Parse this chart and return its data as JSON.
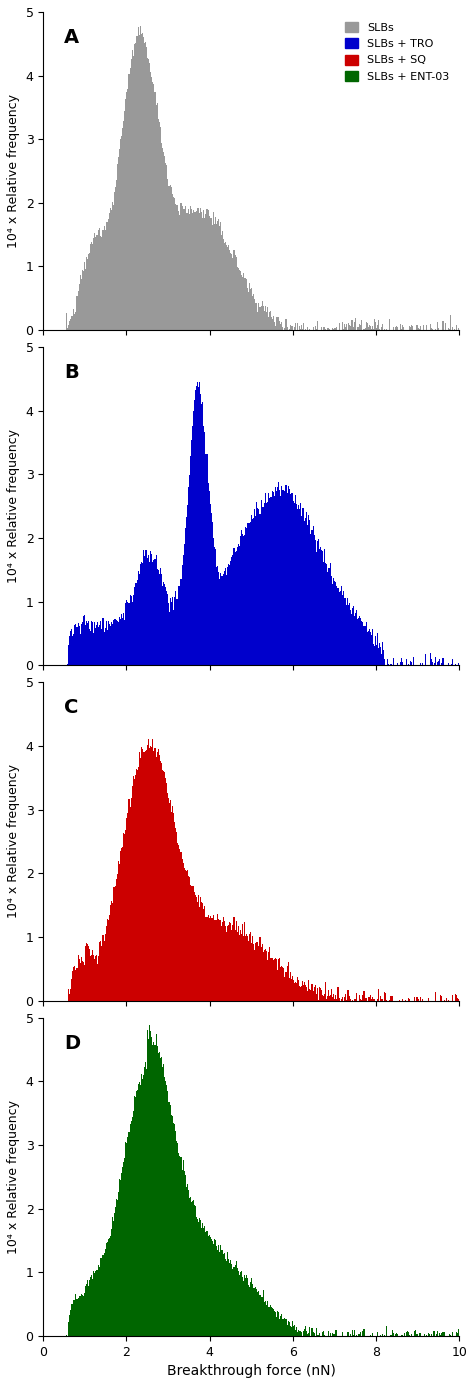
{
  "panels": [
    {
      "label": "A",
      "color": "#999999"
    },
    {
      "label": "B",
      "color": "#0000cc"
    },
    {
      "label": "C",
      "color": "#cc0000"
    },
    {
      "label": "D",
      "color": "#006600"
    }
  ],
  "legend_labels": [
    "SLBs",
    "SLBs + TRO",
    "SLBs + SQ",
    "SLBs + ENT-03"
  ],
  "legend_colors": [
    "#999999",
    "#0000cc",
    "#cc0000",
    "#006600"
  ],
  "ylabel": "10⁴ x Relative frequency",
  "xlabel": "Breakthrough force (nN)",
  "xlim": [
    0,
    10
  ],
  "ylim": [
    0,
    5
  ],
  "yticks": [
    0,
    1,
    2,
    3,
    4,
    5
  ],
  "xticks": [
    0,
    2,
    4,
    6,
    8,
    10
  ],
  "bin_width": 0.025
}
